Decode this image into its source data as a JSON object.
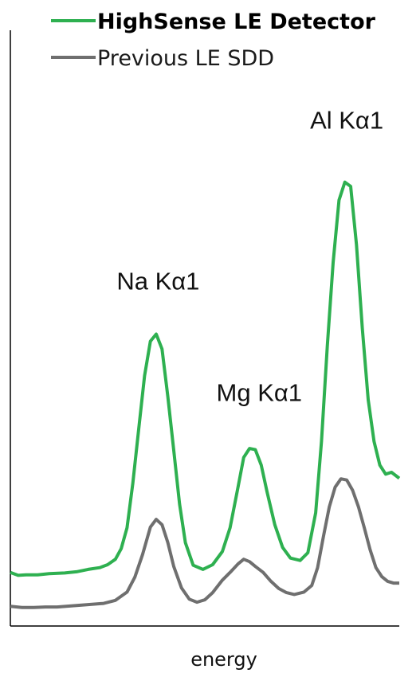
{
  "chart_data": {
    "type": "line",
    "xlabel": "energy",
    "ylabel": "",
    "grid": false,
    "legend_placement": "top",
    "series": [
      {
        "name": "HighSense LE Detector",
        "color": "#2eb050",
        "bold": true,
        "points": [
          [
            0.0,
            0.09
          ],
          [
            0.02,
            0.085
          ],
          [
            0.04,
            0.086
          ],
          [
            0.07,
            0.086
          ],
          [
            0.1,
            0.088
          ],
          [
            0.14,
            0.089
          ],
          [
            0.17,
            0.091
          ],
          [
            0.2,
            0.095
          ],
          [
            0.23,
            0.098
          ],
          [
            0.25,
            0.103
          ],
          [
            0.27,
            0.112
          ],
          [
            0.285,
            0.13
          ],
          [
            0.3,
            0.165
          ],
          [
            0.315,
            0.24
          ],
          [
            0.33,
            0.33
          ],
          [
            0.345,
            0.42
          ],
          [
            0.36,
            0.478
          ],
          [
            0.375,
            0.49
          ],
          [
            0.39,
            0.465
          ],
          [
            0.405,
            0.385
          ],
          [
            0.42,
            0.295
          ],
          [
            0.435,
            0.205
          ],
          [
            0.45,
            0.14
          ],
          [
            0.47,
            0.102
          ],
          [
            0.495,
            0.095
          ],
          [
            0.52,
            0.103
          ],
          [
            0.545,
            0.125
          ],
          [
            0.565,
            0.165
          ],
          [
            0.585,
            0.232
          ],
          [
            0.6,
            0.283
          ],
          [
            0.615,
            0.298
          ],
          [
            0.63,
            0.296
          ],
          [
            0.645,
            0.27
          ],
          [
            0.66,
            0.225
          ],
          [
            0.68,
            0.17
          ],
          [
            0.7,
            0.132
          ],
          [
            0.72,
            0.114
          ],
          [
            0.745,
            0.11
          ],
          [
            0.765,
            0.123
          ],
          [
            0.785,
            0.19
          ],
          [
            0.8,
            0.31
          ],
          [
            0.815,
            0.47
          ],
          [
            0.83,
            0.61
          ],
          [
            0.845,
            0.715
          ],
          [
            0.86,
            0.745
          ],
          [
            0.875,
            0.738
          ],
          [
            0.89,
            0.64
          ],
          [
            0.905,
            0.5
          ],
          [
            0.92,
            0.38
          ],
          [
            0.935,
            0.31
          ],
          [
            0.95,
            0.27
          ],
          [
            0.965,
            0.255
          ],
          [
            0.98,
            0.258
          ],
          [
            1.0,
            0.248
          ]
        ]
      },
      {
        "name": "Previous LE SDD",
        "color": "#6f6f6f",
        "bold": false,
        "points": [
          [
            0.0,
            0.033
          ],
          [
            0.03,
            0.031
          ],
          [
            0.06,
            0.031
          ],
          [
            0.09,
            0.032
          ],
          [
            0.12,
            0.032
          ],
          [
            0.16,
            0.034
          ],
          [
            0.2,
            0.036
          ],
          [
            0.24,
            0.038
          ],
          [
            0.27,
            0.043
          ],
          [
            0.3,
            0.057
          ],
          [
            0.32,
            0.082
          ],
          [
            0.34,
            0.12
          ],
          [
            0.36,
            0.166
          ],
          [
            0.375,
            0.179
          ],
          [
            0.39,
            0.17
          ],
          [
            0.405,
            0.14
          ],
          [
            0.42,
            0.1
          ],
          [
            0.44,
            0.064
          ],
          [
            0.46,
            0.045
          ],
          [
            0.48,
            0.04
          ],
          [
            0.5,
            0.044
          ],
          [
            0.52,
            0.056
          ],
          [
            0.545,
            0.077
          ],
          [
            0.565,
            0.09
          ],
          [
            0.585,
            0.104
          ],
          [
            0.6,
            0.112
          ],
          [
            0.615,
            0.108
          ],
          [
            0.63,
            0.1
          ],
          [
            0.65,
            0.09
          ],
          [
            0.67,
            0.075
          ],
          [
            0.69,
            0.063
          ],
          [
            0.71,
            0.056
          ],
          [
            0.73,
            0.053
          ],
          [
            0.755,
            0.057
          ],
          [
            0.775,
            0.068
          ],
          [
            0.79,
            0.098
          ],
          [
            0.805,
            0.15
          ],
          [
            0.82,
            0.2
          ],
          [
            0.835,
            0.233
          ],
          [
            0.85,
            0.247
          ],
          [
            0.865,
            0.245
          ],
          [
            0.88,
            0.228
          ],
          [
            0.895,
            0.2
          ],
          [
            0.91,
            0.165
          ],
          [
            0.925,
            0.128
          ],
          [
            0.94,
            0.098
          ],
          [
            0.955,
            0.083
          ],
          [
            0.97,
            0.075
          ],
          [
            0.985,
            0.072
          ],
          [
            1.0,
            0.072
          ]
        ]
      }
    ],
    "annotations": [
      {
        "text": "Na Kα1",
        "x": 0.38,
        "y": 0.565
      },
      {
        "text": "Mg Kα1",
        "x": 0.64,
        "y": 0.378
      },
      {
        "text": "Al Kα1",
        "x": 0.865,
        "y": 0.835
      }
    ]
  }
}
